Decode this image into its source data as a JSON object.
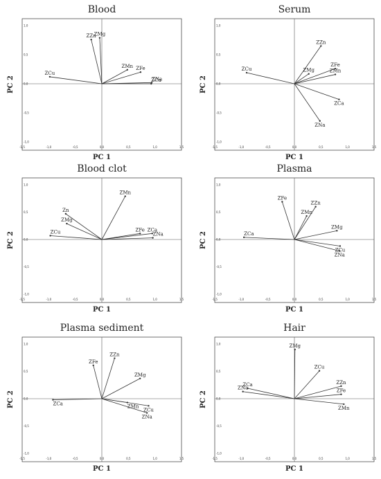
{
  "chart_data": [
    {
      "type": "scatter",
      "title": "Blood",
      "xlabel": "PC 1",
      "ylabel": "PC 2",
      "xlim": [
        -1.5,
        1.5
      ],
      "ylim": [
        -1.0,
        1.0
      ],
      "xticks": [
        "-1,5",
        "-1,0",
        "-0,5",
        "0,0",
        "0,5",
        "1,0",
        "1,5"
      ],
      "yticks": [
        "1,0",
        "0,5",
        "0,0",
        "-0,5",
        "-1,0"
      ],
      "vectors": [
        {
          "label": "ZCu",
          "x": -0.98,
          "y": 0.12
        },
        {
          "label": "ZZn",
          "x": -0.2,
          "y": 0.76
        },
        {
          "label": "ZMg",
          "x": -0.04,
          "y": 0.79
        },
        {
          "label": "ZMn",
          "x": 0.48,
          "y": 0.24
        },
        {
          "label": "ZFe",
          "x": 0.73,
          "y": 0.2
        },
        {
          "label": "ZNa",
          "x": 0.94,
          "y": 0.02
        },
        {
          "label": "ZCa",
          "x": 0.93,
          "y": 0.0
        }
      ]
    },
    {
      "type": "scatter",
      "title": "Serum",
      "xlabel": "PC 1",
      "ylabel": "PC 2",
      "xlim": [
        -1.5,
        1.5
      ],
      "ylim": [
        -1.0,
        1.0
      ],
      "xticks": [
        "-1,5",
        "-1,0",
        "-0,5",
        "0,0",
        "0,5",
        "1,0",
        "1,5"
      ],
      "yticks": [
        "1,0",
        "0,5",
        "0,0",
        "-0,5",
        "-1,0"
      ],
      "vectors": [
        {
          "label": "ZCu",
          "x": -0.9,
          "y": 0.19
        },
        {
          "label": "ZMg",
          "x": 0.27,
          "y": 0.17
        },
        {
          "label": "ZZn",
          "x": 0.5,
          "y": 0.65
        },
        {
          "label": "ZFe",
          "x": 0.77,
          "y": 0.26
        },
        {
          "label": "ZMn",
          "x": 0.77,
          "y": 0.16
        },
        {
          "label": "ZCa",
          "x": 0.84,
          "y": -0.27
        },
        {
          "label": "ZNa",
          "x": 0.48,
          "y": -0.64
        }
      ]
    },
    {
      "type": "scatter",
      "title": "Blood clot",
      "xlabel": "PC 1",
      "ylabel": "PC 2",
      "xlim": [
        -1.5,
        1.5
      ],
      "ylim": [
        -1.0,
        1.0
      ],
      "xticks": [
        "-1,5",
        "-1,0",
        "-0,5",
        "0,0",
        "0,5",
        "1,0",
        "1,5"
      ],
      "yticks": [
        "1,0",
        "0,5",
        "0,0",
        "-0,5",
        "-1,0"
      ],
      "vectors": [
        {
          "label": "ZCu",
          "x": -0.97,
          "y": 0.07
        },
        {
          "label": "ZMg",
          "x": -0.66,
          "y": 0.29
        },
        {
          "label": "Zn",
          "x": -0.68,
          "y": 0.47
        },
        {
          "label": "ZMn",
          "x": 0.44,
          "y": 0.79
        },
        {
          "label": "ZFe",
          "x": 0.72,
          "y": 0.11
        },
        {
          "label": "ZCa",
          "x": 0.95,
          "y": 0.11
        },
        {
          "label": "ZNa",
          "x": 0.96,
          "y": 0.03
        }
      ]
    },
    {
      "type": "scatter",
      "title": "Plasma",
      "xlabel": "PC 1",
      "ylabel": "PC 2",
      "xlim": [
        -1.5,
        1.5
      ],
      "ylim": [
        -1.0,
        1.0
      ],
      "xticks": [
        "-1,5",
        "-1,0",
        "-0,5",
        "0,0",
        "0,5",
        "1,0",
        "1,5"
      ],
      "yticks": [
        "1,0",
        "0,5",
        "0,0",
        "-0,5",
        "-1,0"
      ],
      "vectors": [
        {
          "label": "ZCa",
          "x": -0.95,
          "y": 0.04
        },
        {
          "label": "ZFe",
          "x": -0.23,
          "y": 0.69
        },
        {
          "label": "ZZn",
          "x": 0.4,
          "y": 0.6
        },
        {
          "label": "ZMn",
          "x": 0.23,
          "y": 0.43
        },
        {
          "label": "ZMg",
          "x": 0.8,
          "y": 0.16
        },
        {
          "label": "ZCu",
          "x": 0.86,
          "y": -0.12
        },
        {
          "label": "ZNa",
          "x": 0.85,
          "y": -0.21
        }
      ]
    },
    {
      "type": "scatter",
      "title": "Plasma sediment",
      "xlabel": "PC 1",
      "ylabel": "PC 2",
      "xlim": [
        -1.5,
        1.5
      ],
      "ylim": [
        -1.0,
        1.0
      ],
      "xticks": [
        "-1,5",
        "-1,0",
        "-0,5",
        "0,0",
        "0,5",
        "1,0",
        "1,5"
      ],
      "yticks": [
        "1,0",
        "0,5",
        "0,0",
        "-0,5",
        "-1,0"
      ],
      "vectors": [
        {
          "label": "ZCa",
          "x": -0.92,
          "y": -0.02
        },
        {
          "label": "ZFe",
          "x": -0.16,
          "y": 0.61
        },
        {
          "label": "ZZn",
          "x": 0.24,
          "y": 0.74
        },
        {
          "label": "ZMg",
          "x": 0.72,
          "y": 0.37
        },
        {
          "label": "ZMn",
          "x": 0.48,
          "y": -0.07
        },
        {
          "label": "ZCu",
          "x": 0.88,
          "y": -0.13
        },
        {
          "label": "ZNa",
          "x": 0.85,
          "y": -0.26
        }
      ]
    },
    {
      "type": "scatter",
      "title": "Hair",
      "xlabel": "PC 1",
      "ylabel": "PC 2",
      "xlim": [
        -1.5,
        1.5
      ],
      "ylim": [
        -1.0,
        1.0
      ],
      "xticks": [
        "-1,5",
        "-1,0",
        "-0,5",
        "0,0",
        "0,5",
        "1,0",
        "1,5"
      ],
      "yticks": [
        "1,0",
        "0,5",
        "0,0",
        "-0,5",
        "-1,0"
      ],
      "vectors": [
        {
          "label": "ZMg",
          "x": 0.01,
          "y": 0.9
        },
        {
          "label": "ZCu",
          "x": 0.47,
          "y": 0.51
        },
        {
          "label": "ZCa",
          "x": -0.88,
          "y": 0.19
        },
        {
          "label": "ZNa",
          "x": -0.97,
          "y": 0.13
        },
        {
          "label": "ZZn",
          "x": 0.88,
          "y": 0.23
        },
        {
          "label": "ZFe",
          "x": 0.88,
          "y": 0.08
        },
        {
          "label": "ZMn",
          "x": 0.93,
          "y": -0.1
        }
      ]
    }
  ]
}
